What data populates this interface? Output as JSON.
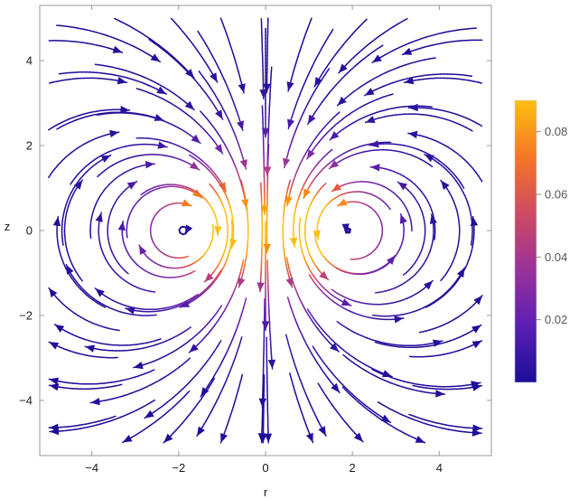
{
  "chart_data": {
    "type": "streamplot",
    "title": "",
    "xlabel": "r",
    "ylabel": "z",
    "xlim": [
      -5.2,
      5.2
    ],
    "ylim": [
      -5.3,
      5.3
    ],
    "x_ticks": [
      -4,
      -2,
      0,
      2,
      4
    ],
    "y_ticks": [
      -4,
      -2,
      0,
      2,
      4
    ],
    "x_tick_labels": [
      "−4",
      "−2",
      "0",
      "2",
      "4"
    ],
    "y_tick_labels": [
      "−4",
      "−2",
      "0",
      "2",
      "4"
    ],
    "grid": false,
    "vortex_centers": [
      [
        -1.8,
        0
      ],
      [
        1.8,
        0
      ]
    ],
    "flow_direction_on_axis": "down",
    "colorbar": {
      "range": [
        0.0,
        0.09
      ],
      "ticks": [
        0.02,
        0.04,
        0.06,
        0.08
      ],
      "tick_labels": [
        "0.02",
        "0.04",
        "0.06",
        "0.08"
      ],
      "colors": [
        "#1b0d99",
        "#6a22b0",
        "#b03a8a",
        "#e4553d",
        "#fb8c12",
        "#fcc010"
      ]
    }
  }
}
